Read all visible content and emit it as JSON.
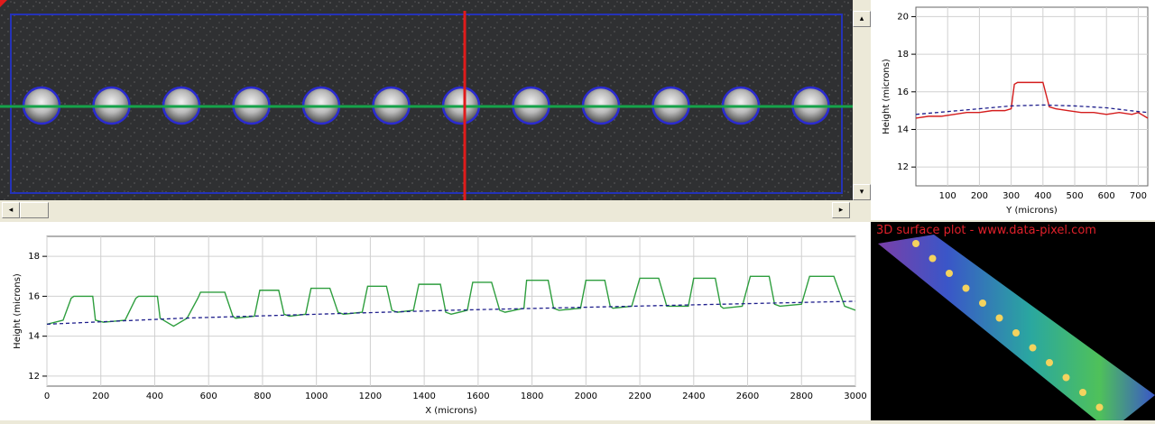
{
  "image_viewer": {
    "wells_count": 12,
    "colors": {
      "frame": "#2432b8",
      "horizontal_line": "#16a34a",
      "vertical_line": "#e01b1b",
      "well_ring": "#2b2bd1"
    }
  },
  "scroll": {
    "left_arrow": "◂",
    "right_arrow": "▸",
    "up_arrow": "▴",
    "down_arrow": "▾"
  },
  "chart_data": [
    {
      "type": "line",
      "xlabel": "Y (microns)",
      "ylabel": "Height (microns)",
      "x_ticks": [
        100,
        200,
        300,
        400,
        500,
        600,
        700
      ],
      "y_ticks": [
        12,
        14,
        16,
        18,
        20
      ],
      "xlim": [
        0,
        730
      ],
      "ylim": [
        11,
        20.5
      ],
      "grid": true,
      "series": [
        {
          "color": "#d41c1c",
          "style": "solid",
          "x": [
            0,
            40,
            80,
            120,
            160,
            200,
            240,
            280,
            300,
            310,
            320,
            360,
            400,
            420,
            440,
            480,
            520,
            560,
            600,
            640,
            680,
            700,
            720,
            730
          ],
          "y": [
            14.6,
            14.7,
            14.7,
            14.8,
            14.9,
            14.9,
            15.0,
            15.0,
            15.1,
            16.4,
            16.5,
            16.5,
            16.5,
            15.2,
            15.1,
            15.0,
            14.9,
            14.9,
            14.8,
            14.9,
            14.8,
            14.9,
            14.7,
            14.6
          ]
        },
        {
          "color": "#1e1e8c",
          "style": "dashed",
          "x": [
            0,
            100,
            200,
            300,
            400,
            500,
            600,
            700,
            730
          ],
          "y": [
            14.8,
            14.95,
            15.1,
            15.25,
            15.3,
            15.25,
            15.15,
            14.95,
            14.9
          ]
        }
      ]
    },
    {
      "type": "line",
      "xlabel": "X (microns)",
      "ylabel": "Height (microns)",
      "x_ticks": [
        0,
        200,
        400,
        600,
        800,
        1000,
        1200,
        1400,
        1600,
        1800,
        2000,
        2200,
        2400,
        2600,
        2800,
        3000
      ],
      "y_ticks": [
        12,
        14,
        16,
        18
      ],
      "xlim": [
        0,
        3000
      ],
      "ylim": [
        11.5,
        19
      ],
      "grid": true,
      "series": [
        {
          "color": "#2e9e3e",
          "style": "solid",
          "x": [
            0,
            60,
            90,
            100,
            170,
            180,
            210,
            290,
            330,
            340,
            410,
            420,
            470,
            520,
            560,
            570,
            660,
            690,
            700,
            770,
            790,
            860,
            880,
            900,
            960,
            980,
            1050,
            1080,
            1100,
            1170,
            1190,
            1260,
            1280,
            1300,
            1360,
            1380,
            1460,
            1480,
            1500,
            1560,
            1580,
            1650,
            1680,
            1700,
            1770,
            1780,
            1860,
            1880,
            1900,
            1980,
            2000,
            2070,
            2090,
            2100,
            2170,
            2200,
            2270,
            2300,
            2310,
            2380,
            2400,
            2480,
            2500,
            2510,
            2580,
            2610,
            2680,
            2700,
            2720,
            2800,
            2830,
            2920,
            2960,
            3000
          ],
          "y": [
            14.6,
            14.8,
            15.9,
            16.0,
            16.0,
            14.8,
            14.7,
            14.8,
            15.9,
            16.0,
            16.0,
            14.9,
            14.5,
            14.9,
            15.9,
            16.2,
            16.2,
            15.0,
            14.9,
            15.0,
            16.3,
            16.3,
            15.1,
            15.0,
            15.1,
            16.4,
            16.4,
            15.2,
            15.1,
            15.2,
            16.5,
            16.5,
            15.3,
            15.2,
            15.3,
            16.6,
            16.6,
            15.2,
            15.1,
            15.3,
            16.7,
            16.7,
            15.3,
            15.2,
            15.4,
            16.8,
            16.8,
            15.4,
            15.3,
            15.4,
            16.8,
            16.8,
            15.5,
            15.4,
            15.5,
            16.9,
            16.9,
            15.5,
            15.5,
            15.5,
            16.9,
            16.9,
            15.5,
            15.4,
            15.5,
            17.0,
            17.0,
            15.6,
            15.5,
            15.6,
            17.0,
            17.0,
            15.5,
            15.3
          ]
        },
        {
          "color": "#1e1e8c",
          "style": "dashed",
          "x": [
            0,
            500,
            1000,
            1500,
            2000,
            2500,
            3000
          ],
          "y": [
            14.6,
            14.9,
            15.1,
            15.3,
            15.45,
            15.6,
            15.75
          ]
        }
      ]
    }
  ],
  "surface_plot": {
    "title": "3D surface plot - www.data-pixel.com",
    "title_color": "#e0202a"
  }
}
